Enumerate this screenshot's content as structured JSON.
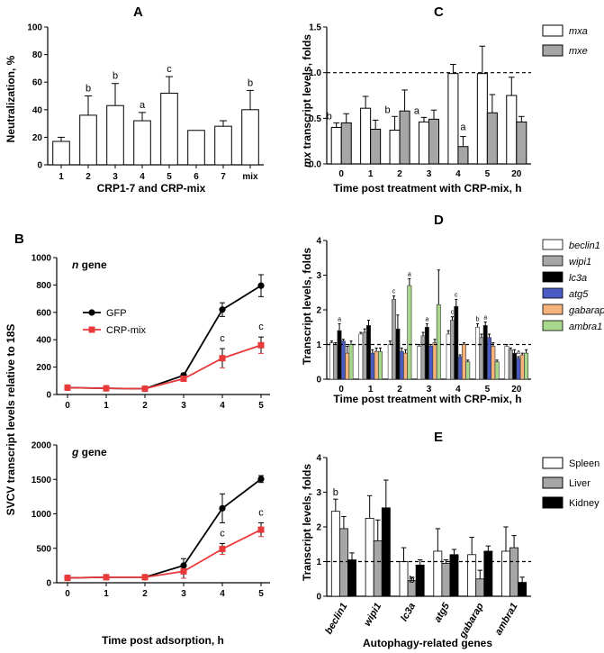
{
  "chart_data": [
    {
      "panel": "A",
      "type": "bar",
      "xlabel": "CRP1-7 and CRP-mix",
      "ylabel": "Neutralization, %",
      "ylim": [
        0,
        100
      ],
      "yticks": [
        0,
        20,
        40,
        60,
        80,
        100
      ],
      "categories": [
        "1",
        "2",
        "3",
        "4",
        "5",
        "6",
        "7",
        "mix"
      ],
      "values": [
        17,
        36,
        43,
        32,
        52,
        25,
        28,
        40
      ],
      "errors": [
        3,
        14,
        16,
        6,
        12,
        0,
        4,
        14
      ],
      "annotations": [
        "",
        "b",
        "b",
        "a",
        "c",
        "",
        "",
        "b"
      ]
    },
    {
      "panel": "C",
      "type": "bar",
      "xlabel": "Time post treatment with CRP-mix, h",
      "ylabel_italic": "mx",
      "ylabel_rest": " transcript levels, folds",
      "ylim": [
        0,
        1.5
      ],
      "yticks": [
        "0.0",
        "0.5",
        "1.0",
        "1.5"
      ],
      "reference_line": 1.0,
      "categories": [
        "0",
        "1",
        "2",
        "3",
        "4",
        "5",
        "20"
      ],
      "series": [
        {
          "name": "mxa",
          "color": "#ffffff",
          "values": [
            0.4,
            0.61,
            0.37,
            0.46,
            0.99,
            0.99,
            0.75
          ],
          "errors": [
            0.05,
            0.13,
            0.15,
            0.05,
            0.1,
            0.3,
            0.2
          ]
        },
        {
          "name": "mxe",
          "color": "#a6a6a6",
          "values": [
            0.45,
            0.38,
            0.58,
            0.49,
            0.19,
            0.56,
            0.46
          ],
          "errors": [
            0.1,
            0.1,
            0.23,
            0.1,
            0.11,
            0.2,
            0.06
          ]
        }
      ],
      "annotations": [
        {
          "category": "0",
          "series": "mxa",
          "text": "b"
        },
        {
          "category": "2",
          "series": "mxa",
          "text": "b"
        },
        {
          "category": "3",
          "series": "mxa",
          "text": "a"
        },
        {
          "category": "4",
          "series": "mxe",
          "text": "a"
        }
      ]
    },
    {
      "panel": "B",
      "type": "line",
      "xlabel": "Time post adsorption, h",
      "ylabel": "SVCV transcript levels relative to 18S",
      "x": [
        0,
        1,
        2,
        3,
        4,
        5
      ],
      "subplots": [
        {
          "label_italic": "n",
          "label_rest": " gene",
          "ylim": [
            0,
            1000
          ],
          "yticks": [
            0,
            200,
            400,
            600,
            800,
            1000
          ],
          "series": [
            {
              "name": "GFP",
              "color": "#000000",
              "values": [
                50,
                45,
                42,
                140,
                620,
                795
              ],
              "errors": [
                8,
                8,
                8,
                15,
                50,
                80
              ]
            },
            {
              "name": "CRP-mix",
              "color": "#e8393b",
              "values": [
                50,
                45,
                42,
                115,
                265,
                360
              ],
              "errors": [
                8,
                8,
                8,
                15,
                70,
                60
              ]
            }
          ],
          "annotations": [
            {
              "x": 4,
              "text": "c"
            },
            {
              "x": 5,
              "text": "c"
            }
          ]
        },
        {
          "label_italic": "g",
          "label_rest": " gene",
          "ylim": [
            0,
            2000
          ],
          "yticks": [
            0,
            500,
            1000,
            1500,
            2000
          ],
          "series": [
            {
              "name": "GFP",
              "color": "#000000",
              "values": [
                70,
                80,
                80,
                250,
                1080,
                1505
              ],
              "errors": [
                20,
                20,
                20,
                100,
                210,
                50
              ]
            },
            {
              "name": "CRP-mix",
              "color": "#e8393b",
              "values": [
                70,
                80,
                80,
                165,
                490,
                770
              ],
              "errors": [
                20,
                20,
                20,
                100,
                80,
                100
              ]
            }
          ],
          "annotations": [
            {
              "x": 4,
              "text": "c"
            },
            {
              "x": 5,
              "text": "c"
            }
          ]
        }
      ]
    },
    {
      "panel": "D",
      "type": "bar",
      "xlabel": "Time post treatment with CRP-mix, h",
      "ylabel": "Transcript levels, folds",
      "ylim": [
        0,
        4
      ],
      "yticks": [
        0,
        1,
        2,
        3,
        4
      ],
      "reference_line": 1.0,
      "categories": [
        "0",
        "1",
        "2",
        "3",
        "4",
        "5",
        "20"
      ],
      "series": [
        {
          "name": "beclin1",
          "color": "#ffffff",
          "values": [
            1.05,
            1.3,
            1.0,
            0.95,
            1.3,
            1.5,
            0.95
          ],
          "errors": [
            0.05,
            0.05,
            0.1,
            0.05,
            0.1,
            0.1,
            0.05
          ]
        },
        {
          "name": "wipi1",
          "color": "#a6a6a6",
          "values": [
            1.0,
            1.35,
            2.3,
            1.25,
            1.7,
            1.2,
            0.85
          ],
          "errors": [
            0.05,
            0.1,
            0.1,
            0.1,
            0.1,
            0.1,
            0.05
          ]
        },
        {
          "name": "lc3a",
          "color": "#000000",
          "values": [
            1.4,
            1.55,
            1.45,
            1.5,
            2.1,
            1.55,
            0.75
          ],
          "errors": [
            0.2,
            0.15,
            0.4,
            0.1,
            0.2,
            0.1,
            0.1
          ]
        },
        {
          "name": "atg5",
          "color": "#4a5bc4",
          "values": [
            1.1,
            0.75,
            0.8,
            0.95,
            0.65,
            1.2,
            0.6
          ],
          "errors": [
            0.05,
            0.1,
            0.1,
            0.05,
            0.05,
            0.1,
            0.05
          ]
        },
        {
          "name": "gabarap",
          "color": "#f6b37c",
          "values": [
            0.75,
            0.8,
            0.75,
            1.05,
            1.0,
            0.95,
            0.7
          ],
          "errors": [
            0.2,
            0.1,
            0.1,
            0.1,
            0.05,
            0.1,
            0.05
          ]
        },
        {
          "name": "ambra1",
          "color": "#a8d88b",
          "values": [
            1.0,
            0.8,
            2.7,
            2.15,
            0.5,
            0.5,
            0.75
          ],
          "errors": [
            0.1,
            0.1,
            0.2,
            1.0,
            0.05,
            0.05,
            0.1
          ]
        }
      ],
      "annotations": [
        {
          "category": "0",
          "series": "lc3a",
          "text": "a"
        },
        {
          "category": "2",
          "series": "wipi1",
          "text": "c"
        },
        {
          "category": "2",
          "series": "ambra1",
          "text": "a"
        },
        {
          "category": "3",
          "series": "lc3a",
          "text": "a"
        },
        {
          "category": "4",
          "series": "wipi1",
          "text": "c"
        },
        {
          "category": "4",
          "series": "lc3a",
          "text": "c"
        },
        {
          "category": "5",
          "series": "beclin1",
          "text": "b"
        },
        {
          "category": "5",
          "series": "lc3a",
          "text": "a"
        },
        {
          "category": "20",
          "series": "atg5",
          "text": "a"
        }
      ]
    },
    {
      "panel": "E",
      "type": "bar",
      "xlabel": "Autophagy-related genes",
      "ylabel": "Transcript levels, folds",
      "ylim": [
        0,
        4
      ],
      "yticks": [
        0,
        1,
        2,
        3,
        4
      ],
      "reference_line": 1.0,
      "categories": [
        "beclin1",
        "wipi1",
        "lc3a",
        "atg5",
        "gabarap",
        "ambra1"
      ],
      "series": [
        {
          "name": "Spleen",
          "color": "#ffffff",
          "values": [
            2.45,
            2.25,
            1.0,
            1.3,
            1.2,
            1.3
          ],
          "errors": [
            0.35,
            0.65,
            0.4,
            0.65,
            0.5,
            0.7
          ]
        },
        {
          "name": "Liver",
          "color": "#a6a6a6",
          "values": [
            1.95,
            1.6,
            0.45,
            0.95,
            0.5,
            1.4
          ],
          "errors": [
            0.35,
            0.6,
            0.1,
            0.1,
            0.25,
            0.35
          ]
        },
        {
          "name": "Kidney",
          "color": "#000000",
          "values": [
            1.05,
            2.55,
            0.9,
            1.2,
            1.3,
            0.4
          ],
          "errors": [
            0.2,
            0.8,
            0.15,
            0.15,
            0.15,
            0.15
          ]
        }
      ],
      "annotations": [
        {
          "category": "beclin1",
          "series": "Spleen",
          "text": "b"
        },
        {
          "category": "lc3a",
          "series": "Liver",
          "text": "b"
        }
      ]
    }
  ]
}
